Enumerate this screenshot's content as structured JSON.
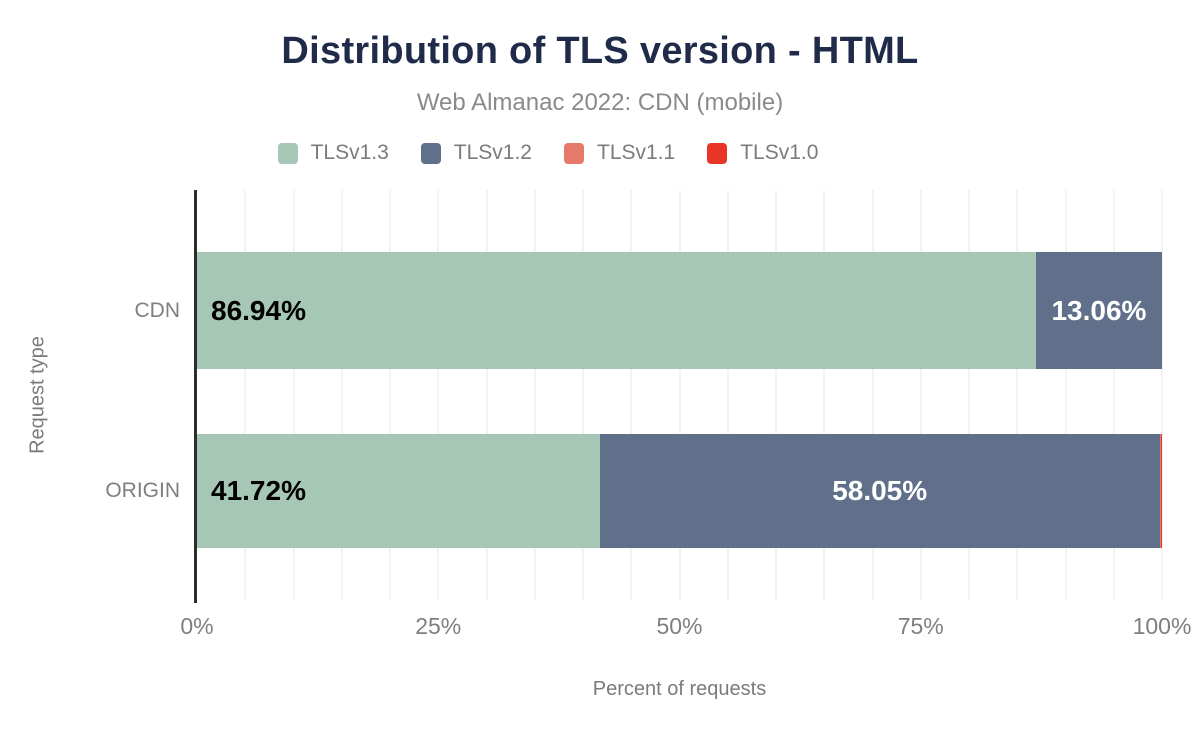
{
  "colors": {
    "title_text": "#1f2b49",
    "muted_text": "#8a8a8a",
    "axis_text": "#7f7f7f",
    "axis_line": "#2d2d2d",
    "gridline": "#f3f3f3"
  },
  "chart_data": {
    "type": "bar",
    "orientation": "horizontal",
    "stacked": true,
    "title": "Distribution of TLS version - HTML",
    "subtitle": "Web Almanac 2022: CDN (mobile)",
    "xlabel": "Percent of requests",
    "ylabel": "Request type",
    "categories": [
      "CDN",
      "ORIGIN"
    ],
    "series": [
      {
        "name": "TLSv1.3",
        "color": "#a6c7b6",
        "values": [
          86.94,
          41.72
        ],
        "labels": [
          "86.94%",
          "41.72%"
        ],
        "label_color": "#000000",
        "label_align": "left"
      },
      {
        "name": "TLSv1.2",
        "color": "#60708a",
        "values": [
          13.06,
          58.05
        ],
        "labels": [
          "13.06%",
          "58.05%"
        ],
        "label_color": "#ffffff",
        "label_align": "center"
      },
      {
        "name": "TLSv1.1",
        "color": "#e5796c",
        "values": [
          0,
          0.08
        ],
        "labels": [
          "",
          ""
        ],
        "label_color": "#000000",
        "label_align": "center"
      },
      {
        "name": "TLSv1.0",
        "color": "#e93528",
        "values": [
          0,
          0.15
        ],
        "labels": [
          "",
          ""
        ],
        "label_color": "#000000",
        "label_align": "center"
      }
    ],
    "x_ticks": [
      "0%",
      "25%",
      "50%",
      "75%",
      "100%"
    ],
    "xlim": [
      0,
      100
    ],
    "grid": "vertical",
    "grid_step": 5,
    "legend_position": "top"
  }
}
